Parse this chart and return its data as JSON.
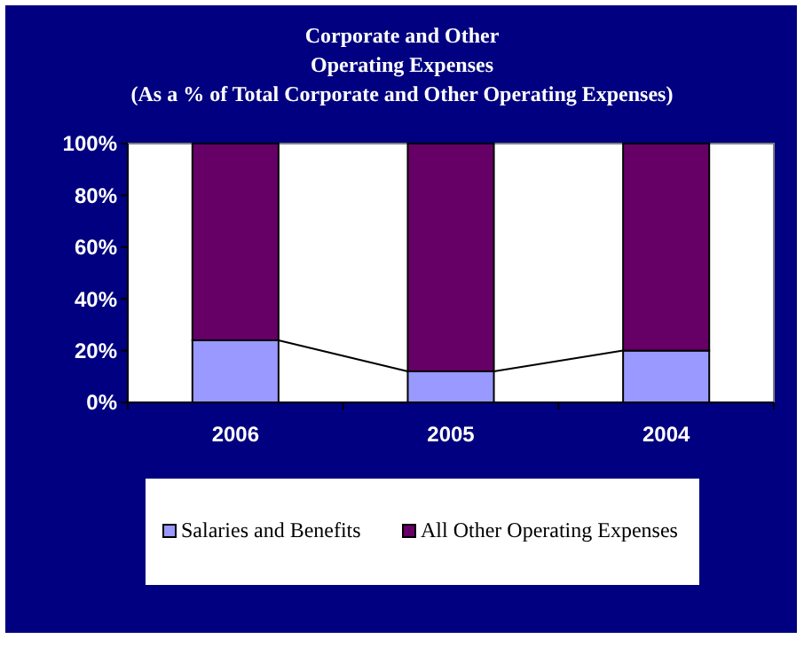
{
  "chart_data": {
    "type": "bar",
    "title": "Corporate and Other\nOperating Expenses\n(As a % of Total Corporate and Other Operating Expenses)",
    "categories": [
      "2006",
      "2005",
      "2004"
    ],
    "stacked": true,
    "series": [
      {
        "name": "Salaries and Benefits",
        "color": "#9999ff",
        "values": [
          24,
          12,
          20
        ]
      },
      {
        "name": "All Other Operating Expenses",
        "color": "#660066",
        "values": [
          76,
          88,
          80
        ]
      }
    ],
    "ylim": [
      0,
      100
    ],
    "yticks": [
      {
        "value": 0,
        "label": "0%"
      },
      {
        "value": 20,
        "label": "20%"
      },
      {
        "value": 40,
        "label": "40%"
      },
      {
        "value": 60,
        "label": "60%"
      },
      {
        "value": 80,
        "label": "80%"
      },
      {
        "value": 100,
        "label": "100%"
      }
    ],
    "legend": "bottom"
  }
}
